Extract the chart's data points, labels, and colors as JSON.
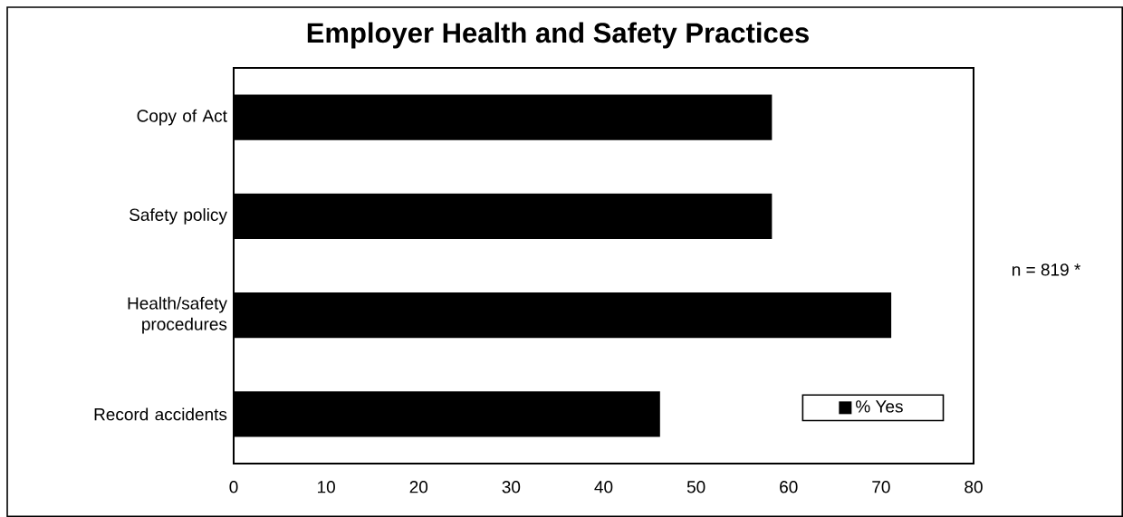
{
  "chart_data": {
    "type": "bar",
    "orientation": "horizontal",
    "title": "Employer Health and Safety Practices",
    "categories": [
      "Copy of Act",
      "Safety policy",
      "Health/safety procedures",
      "Record accidents"
    ],
    "series": [
      {
        "name": "% Yes",
        "color": "#000000",
        "values": [
          58.2,
          58.2,
          71.1,
          46.1
        ]
      }
    ],
    "xlim": [
      0,
      80
    ],
    "xticks": [
      0,
      10,
      20,
      30,
      40,
      50,
      60,
      70,
      80
    ],
    "legend": "bottom right",
    "annotations": [
      "n = 819 *"
    ]
  }
}
